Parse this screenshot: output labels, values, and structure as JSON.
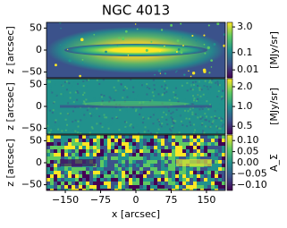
{
  "chart_data": [
    {
      "type": "image",
      "title": "NGC 4013",
      "xlim": [
        -190,
        190
      ],
      "ylim": [
        -63,
        63
      ],
      "yticks": [
        50,
        0,
        {
          "value": -50,
          "label": "−50"
        }
      ],
      "ylabel": "z [arcsec]",
      "cmap": [
        "#440154",
        "#3b528b",
        "#21918c",
        "#5ec962",
        "#fde725"
      ],
      "colorbar": {
        "label": "[MJy/sr]",
        "log": true,
        "clim": [
          0.0035,
          5.5
        ],
        "ticks": [
          {
            "value": 3,
            "label": "3.0"
          },
          0.1,
          0.01
        ]
      }
    },
    {
      "type": "image",
      "xlim": [
        -190,
        190
      ],
      "ylim": [
        -63,
        63
      ],
      "yticks": [
        50,
        0,
        {
          "value": -50,
          "label": "−50"
        }
      ],
      "ylabel": "z [arcsec]",
      "cmap": [
        "#440154",
        "#3b528b",
        "#21918c",
        "#5ec962",
        "#fde725"
      ],
      "colorbar": {
        "label": "[MJy/sr]",
        "log": true,
        "clim": [
          0.38,
          2.65
        ],
        "ticks": [
          {
            "value": 2,
            "label": "2.0"
          },
          {
            "value": 1,
            "label": "1.0"
          },
          0.5
        ]
      }
    },
    {
      "type": "image",
      "xlim": [
        -190,
        190
      ],
      "ylim": [
        -63,
        63
      ],
      "yticks": [
        50,
        0,
        {
          "value": -50,
          "label": "−50"
        }
      ],
      "ylabel": "z [arcsec]",
      "xticks": [
        {
          "value": -150,
          "label": "−150"
        },
        {
          "value": -75,
          "label": "−75"
        },
        0,
        75,
        150
      ],
      "xlabel": "x [arcsec]",
      "cmap": [
        "#440154",
        "#3b528b",
        "#21918c",
        "#5ec962",
        "#fde725"
      ],
      "colorbar": {
        "label": "A_Σ",
        "log": false,
        "clim": [
          -0.125,
          0.125
        ],
        "ticks": [
          {
            "value": 0.1,
            "label": "0.10"
          },
          0.05,
          {
            "value": 0,
            "label": "0.00"
          },
          {
            "value": -0.05,
            "label": "−0.05"
          },
          {
            "value": -0.1,
            "label": "−0.10"
          }
        ]
      }
    }
  ]
}
